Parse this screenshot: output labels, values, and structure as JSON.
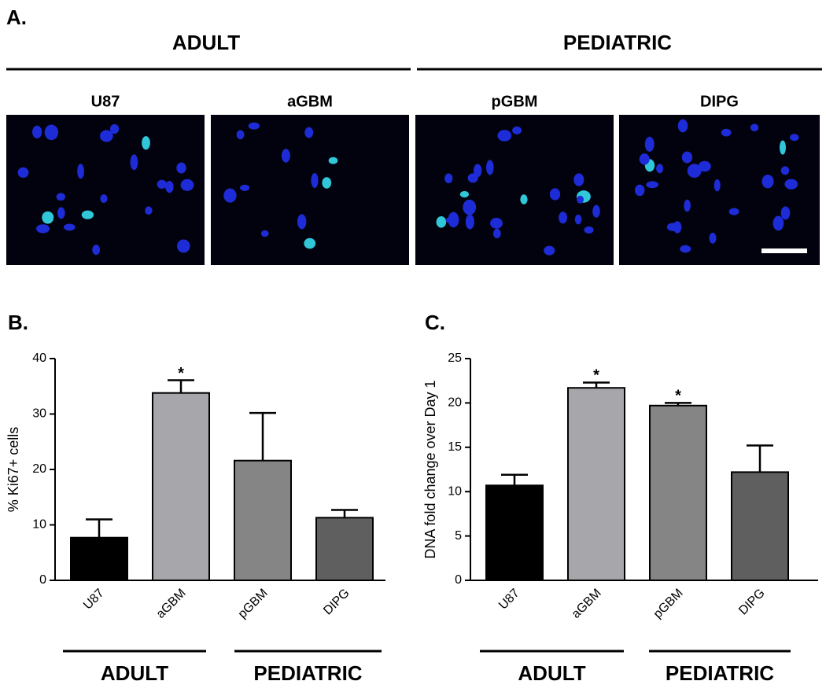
{
  "panel_a": {
    "label": "A.",
    "groups": [
      "ADULT",
      "PEDIATRIC"
    ],
    "images": [
      {
        "label": "U87"
      },
      {
        "label": "aGBM"
      },
      {
        "label": "pGBM"
      },
      {
        "label": "DIPG"
      }
    ]
  },
  "chart_data": [
    {
      "type": "bar",
      "panel_label": "B.",
      "ylabel": "% Ki67+ cells",
      "categories": [
        "U87",
        "aGBM",
        "pGBM",
        "DIPG"
      ],
      "values": [
        7.7,
        33.8,
        21.6,
        11.3
      ],
      "errors": [
        3.3,
        2.3,
        8.6,
        1.4
      ],
      "significance": [
        null,
        "*",
        null,
        null
      ],
      "colors": [
        "#000000",
        "#a7a7ab",
        "#858585",
        "#5f5f5f"
      ],
      "ylim": [
        0,
        40
      ],
      "yticks": [
        0,
        10,
        20,
        30,
        40
      ],
      "groups": [
        "ADULT",
        "PEDIATRIC"
      ]
    },
    {
      "type": "bar",
      "panel_label": "C.",
      "ylabel": "DNA fold change over Day 1",
      "categories": [
        "U87",
        "aGBM",
        "pGBM",
        "DIPG"
      ],
      "values": [
        10.7,
        21.7,
        19.7,
        12.2
      ],
      "errors": [
        1.2,
        0.6,
        0.3,
        3.0
      ],
      "significance": [
        null,
        "*",
        "*",
        null
      ],
      "colors": [
        "#000000",
        "#a7a7ab",
        "#858585",
        "#5f5f5f"
      ],
      "ylim": [
        0,
        25
      ],
      "yticks": [
        0,
        5,
        10,
        15,
        20,
        25
      ],
      "groups": [
        "ADULT",
        "PEDIATRIC"
      ]
    }
  ]
}
